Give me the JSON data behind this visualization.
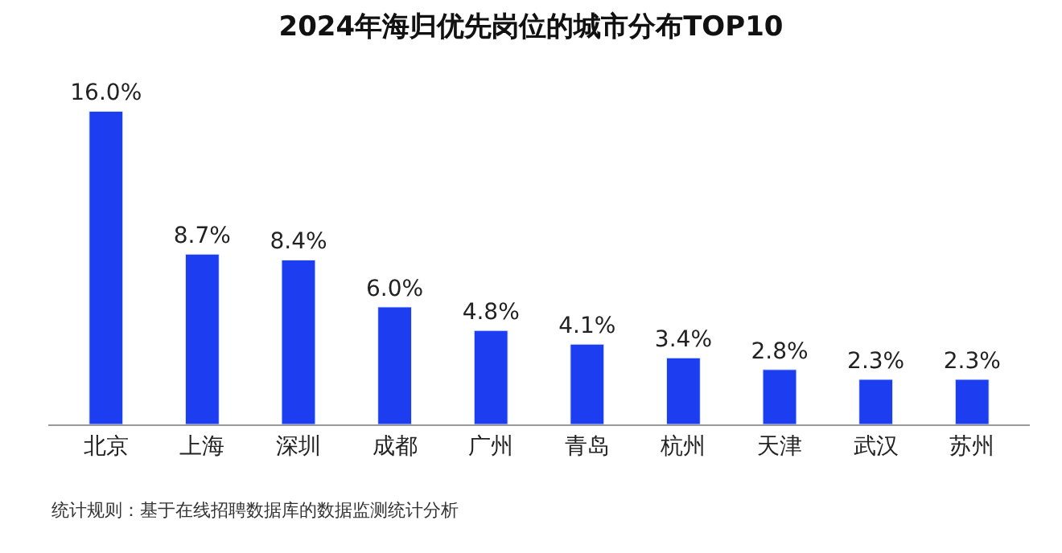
{
  "chart_data": {
    "type": "bar",
    "title": "2024年海归优先岗位的城市分布TOP10",
    "categories": [
      "北京",
      "上海",
      "深圳",
      "成都",
      "广州",
      "青岛",
      "杭州",
      "天津",
      "武汉",
      "苏州"
    ],
    "values": [
      16.0,
      8.7,
      8.4,
      6.0,
      4.8,
      4.1,
      3.4,
      2.8,
      2.3,
      2.3
    ],
    "value_labels": [
      "16.0%",
      "8.7%",
      "8.4%",
      "6.0%",
      "4.8%",
      "4.1%",
      "3.4%",
      "2.8%",
      "2.3%",
      "2.3%"
    ],
    "color": "#1c3ef0",
    "legend": false,
    "annotations": [
      "统计规则：基于在线招聘数据库的数据监测统计分析"
    ]
  }
}
